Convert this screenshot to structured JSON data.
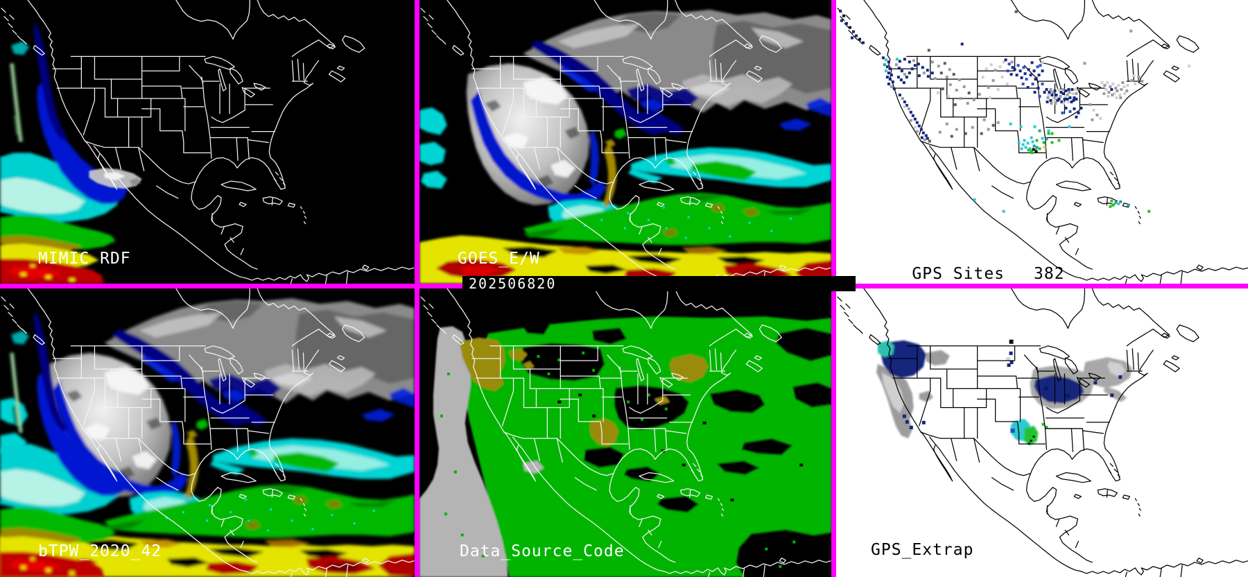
{
  "montage": {
    "timestamp": "202506820",
    "divider_color": "#ff00ff",
    "background": "#000000"
  },
  "panels": {
    "mimic_rdf": {
      "title": "MIMIC RDF",
      "text_color": "#ffffff"
    },
    "goes_ew": {
      "title": "GOES_E/W",
      "text_color": "#ffffff"
    },
    "gps_sites": {
      "title": "GPS Sites",
      "count": "382",
      "text_color": "#000000"
    },
    "btpw": {
      "title": "bTPW_2020_42",
      "text_color": "#ffffff"
    },
    "data_source_code": {
      "title": "Data_Source_Code",
      "text_color": "#ffffff"
    },
    "gps_extrap": {
      "title": "GPS_Extrap",
      "text_color": "#000000"
    }
  },
  "tpw_palette": {
    "dry_black": "#000000",
    "low_navy": "#000080",
    "low_blue": "#0018d0",
    "mid_cyan": "#00d4d4",
    "mid_pale_cyan": "#aef2e4",
    "moist_green": "#00b800",
    "high_yellow": "#e4e400",
    "very_high_red": "#b00000",
    "cloud_gray": "#c4c4c4",
    "source_green": "#00b400",
    "source_olive": "#9a8b10",
    "source_gray": "#b4b4b4"
  },
  "gps_dot_colors": {
    "n": "#14277e",
    "u": "#2d4fc8",
    "c": "#2fc9cf",
    "t": "#2a9f9f",
    "g": "#23c22e",
    "y": "#d4d432",
    "l": "#cfcfcf",
    "m": "#9a9a9a",
    "d": "#5a5a5a",
    "k": "#101010"
  },
  "gps_sites_dots": [
    [
      4,
      14,
      "n"
    ],
    [
      9,
      21,
      "k"
    ],
    [
      6,
      28,
      "n"
    ],
    [
      13,
      32,
      "n"
    ],
    [
      18,
      38,
      "k"
    ],
    [
      23,
      44,
      "n"
    ],
    [
      27,
      50,
      "n"
    ],
    [
      32,
      55,
      "k"
    ],
    [
      21,
      53,
      "n"
    ],
    [
      37,
      60,
      "n"
    ],
    [
      258,
      15,
      "d"
    ],
    [
      424,
      43,
      "m"
    ],
    [
      508,
      94,
      "l"
    ],
    [
      357,
      90,
      "m"
    ],
    [
      296,
      88,
      "l"
    ],
    [
      180,
      62,
      "n"
    ],
    [
      132,
      71,
      "d"
    ],
    [
      66,
      82,
      "n"
    ],
    [
      70,
      85,
      "c"
    ],
    [
      74,
      88,
      "n"
    ],
    [
      68,
      92,
      "t"
    ],
    [
      72,
      95,
      "n"
    ],
    [
      76,
      98,
      "n"
    ],
    [
      70,
      101,
      "c"
    ],
    [
      74,
      104,
      "n"
    ],
    [
      78,
      107,
      "n"
    ],
    [
      72,
      110,
      "n"
    ],
    [
      76,
      113,
      "n"
    ],
    [
      80,
      117,
      "n"
    ],
    [
      74,
      120,
      "n"
    ],
    [
      78,
      124,
      "m"
    ],
    [
      82,
      127,
      "n"
    ],
    [
      86,
      84,
      "c"
    ],
    [
      90,
      87,
      "n"
    ],
    [
      85,
      92,
      "m"
    ],
    [
      89,
      97,
      "n"
    ],
    [
      93,
      101,
      "n"
    ],
    [
      97,
      106,
      "m"
    ],
    [
      88,
      110,
      "n"
    ],
    [
      92,
      114,
      "n"
    ],
    [
      96,
      118,
      "n"
    ],
    [
      100,
      110,
      "n"
    ],
    [
      104,
      104,
      "n"
    ],
    [
      108,
      98,
      "n"
    ],
    [
      112,
      93,
      "n"
    ],
    [
      104,
      88,
      "n"
    ],
    [
      97,
      84,
      "n"
    ],
    [
      110,
      86,
      "m"
    ],
    [
      117,
      91,
      "n"
    ],
    [
      123,
      96,
      "n"
    ],
    [
      130,
      100,
      "n"
    ],
    [
      137,
      104,
      "n"
    ],
    [
      125,
      104,
      "m"
    ],
    [
      118,
      108,
      "n"
    ],
    [
      131,
      109,
      "n"
    ],
    [
      137,
      88,
      "m"
    ],
    [
      146,
      94,
      "m"
    ],
    [
      155,
      90,
      "d"
    ],
    [
      162,
      99,
      "m"
    ],
    [
      150,
      104,
      "d"
    ],
    [
      141,
      112,
      "m"
    ],
    [
      158,
      110,
      "m"
    ],
    [
      168,
      106,
      "d"
    ],
    [
      176,
      114,
      "m"
    ],
    [
      163,
      121,
      "m"
    ],
    [
      152,
      127,
      "d"
    ],
    [
      172,
      129,
      "m"
    ],
    [
      183,
      124,
      "m"
    ],
    [
      190,
      133,
      "d"
    ],
    [
      178,
      141,
      "m"
    ],
    [
      188,
      148,
      "m"
    ],
    [
      170,
      150,
      "d"
    ],
    [
      197,
      143,
      "m"
    ],
    [
      145,
      133,
      "l"
    ],
    [
      160,
      138,
      "l"
    ],
    [
      90,
      136,
      "n"
    ],
    [
      94,
      141,
      "m"
    ],
    [
      97,
      146,
      "n"
    ],
    [
      100,
      151,
      "n"
    ],
    [
      103,
      156,
      "m"
    ],
    [
      97,
      153,
      "l"
    ],
    [
      106,
      161,
      "n"
    ],
    [
      109,
      166,
      "n"
    ],
    [
      112,
      171,
      "n"
    ],
    [
      106,
      173,
      "m"
    ],
    [
      115,
      176,
      "n"
    ],
    [
      118,
      181,
      "n"
    ],
    [
      112,
      183,
      "l"
    ],
    [
      121,
      186,
      "n"
    ],
    [
      115,
      189,
      "m"
    ],
    [
      124,
      191,
      "n"
    ],
    [
      128,
      195,
      "n"
    ],
    [
      122,
      198,
      "n"
    ],
    [
      126,
      201,
      "m"
    ],
    [
      130,
      199,
      "n"
    ],
    [
      133,
      203,
      "d"
    ],
    [
      158,
      178,
      "m"
    ],
    [
      172,
      186,
      "m"
    ],
    [
      185,
      192,
      "d"
    ],
    [
      148,
      190,
      "m"
    ],
    [
      195,
      183,
      "m"
    ],
    [
      165,
      196,
      "d"
    ],
    [
      212,
      172,
      "m"
    ],
    [
      225,
      180,
      "d"
    ],
    [
      218,
      186,
      "m"
    ],
    [
      232,
      176,
      "m"
    ],
    [
      208,
      192,
      "d"
    ],
    [
      215,
      98,
      "l"
    ],
    [
      222,
      92,
      "l"
    ],
    [
      228,
      100,
      "m"
    ],
    [
      235,
      95,
      "l"
    ],
    [
      240,
      88,
      "l"
    ],
    [
      252,
      88,
      "m"
    ],
    [
      210,
      110,
      "l"
    ],
    [
      225,
      115,
      "m"
    ],
    [
      238,
      110,
      "l"
    ],
    [
      218,
      125,
      "m"
    ],
    [
      232,
      128,
      "l"
    ],
    [
      245,
      120,
      "l"
    ],
    [
      205,
      135,
      "m"
    ],
    [
      220,
      140,
      "l"
    ],
    [
      243,
      85,
      "n"
    ],
    [
      248,
      91,
      "u"
    ],
    [
      253,
      96,
      "n"
    ],
    [
      246,
      101,
      "u"
    ],
    [
      251,
      106,
      "n"
    ],
    [
      256,
      99,
      "n"
    ],
    [
      261,
      93,
      "u"
    ],
    [
      259,
      107,
      "n"
    ],
    [
      264,
      101,
      "n"
    ],
    [
      269,
      96,
      "u"
    ],
    [
      266,
      111,
      "n"
    ],
    [
      271,
      105,
      "n"
    ],
    [
      276,
      99,
      "n"
    ],
    [
      273,
      113,
      "u"
    ],
    [
      279,
      107,
      "n"
    ],
    [
      284,
      101,
      "n"
    ],
    [
      281,
      89,
      "n"
    ],
    [
      289,
      95,
      "u"
    ],
    [
      286,
      113,
      "n"
    ],
    [
      291,
      107,
      "n"
    ],
    [
      296,
      101,
      "n"
    ],
    [
      293,
      93,
      "u"
    ],
    [
      268,
      120,
      "u"
    ],
    [
      275,
      125,
      "n"
    ],
    [
      282,
      120,
      "u"
    ],
    [
      290,
      126,
      "n"
    ],
    [
      296,
      120,
      "u"
    ],
    [
      285,
      132,
      "n"
    ],
    [
      292,
      138,
      "u"
    ],
    [
      299,
      132,
      "n"
    ],
    [
      302,
      128,
      "n"
    ],
    [
      306,
      132,
      "n"
    ],
    [
      310,
      136,
      "n"
    ],
    [
      304,
      140,
      "m"
    ],
    [
      308,
      144,
      "n"
    ],
    [
      312,
      140,
      "l"
    ],
    [
      316,
      136,
      "n"
    ],
    [
      314,
      130,
      "n"
    ],
    [
      318,
      144,
      "n"
    ],
    [
      322,
      138,
      "m"
    ],
    [
      326,
      134,
      "n"
    ],
    [
      320,
      128,
      "l"
    ],
    [
      324,
      146,
      "n"
    ],
    [
      328,
      142,
      "n"
    ],
    [
      332,
      136,
      "m"
    ],
    [
      330,
      130,
      "n"
    ],
    [
      336,
      140,
      "n"
    ],
    [
      340,
      134,
      "l"
    ],
    [
      334,
      128,
      "n"
    ],
    [
      338,
      146,
      "n"
    ],
    [
      342,
      140,
      "n"
    ],
    [
      345,
      134,
      "m"
    ],
    [
      305,
      136,
      "l"
    ],
    [
      311,
      132,
      "m"
    ],
    [
      317,
      140,
      "l"
    ],
    [
      323,
      132,
      "n"
    ],
    [
      329,
      138,
      "l"
    ],
    [
      335,
      132,
      "m"
    ],
    [
      341,
      144,
      "n"
    ],
    [
      315,
      148,
      "m"
    ],
    [
      327,
      148,
      "l"
    ],
    [
      303,
      146,
      "n"
    ],
    [
      309,
      148,
      "m"
    ],
    [
      333,
      146,
      "l"
    ],
    [
      339,
      128,
      "n"
    ],
    [
      345,
      142,
      "n"
    ],
    [
      308,
      128,
      "m"
    ],
    [
      320,
      142,
      "n"
    ],
    [
      314,
      144,
      "l"
    ],
    [
      326,
      128,
      "m"
    ],
    [
      332,
      142,
      "n"
    ],
    [
      344,
      128,
      "l"
    ],
    [
      330,
      155,
      "n"
    ],
    [
      336,
      160,
      "u"
    ],
    [
      342,
      156,
      "n"
    ],
    [
      348,
      162,
      "n"
    ],
    [
      325,
      162,
      "u"
    ],
    [
      352,
      155,
      "n"
    ],
    [
      345,
      168,
      "n"
    ],
    [
      382,
      118,
      "l"
    ],
    [
      386,
      122,
      "m"
    ],
    [
      390,
      118,
      "l"
    ],
    [
      394,
      124,
      "m"
    ],
    [
      398,
      120,
      "l"
    ],
    [
      402,
      126,
      "m"
    ],
    [
      406,
      122,
      "l"
    ],
    [
      410,
      128,
      "m"
    ],
    [
      414,
      124,
      "l"
    ],
    [
      418,
      130,
      "m"
    ],
    [
      388,
      128,
      "l"
    ],
    [
      392,
      132,
      "m"
    ],
    [
      396,
      128,
      "n"
    ],
    [
      400,
      134,
      "l"
    ],
    [
      404,
      130,
      "m"
    ],
    [
      408,
      136,
      "l"
    ],
    [
      385,
      134,
      "m"
    ],
    [
      391,
      138,
      "l"
    ],
    [
      397,
      136,
      "m"
    ],
    [
      403,
      140,
      "l"
    ],
    [
      409,
      140,
      "m"
    ],
    [
      415,
      134,
      "l"
    ],
    [
      412,
      118,
      "m"
    ],
    [
      419,
      122,
      "l"
    ],
    [
      425,
      115,
      "m"
    ],
    [
      430,
      120,
      "l"
    ],
    [
      435,
      110,
      "m"
    ],
    [
      428,
      108,
      "l"
    ],
    [
      440,
      116,
      "m"
    ],
    [
      365,
      150,
      "m"
    ],
    [
      370,
      158,
      "l"
    ],
    [
      375,
      165,
      "m"
    ],
    [
      368,
      172,
      "m"
    ],
    [
      380,
      170,
      "l"
    ],
    [
      265,
      182,
      "c"
    ],
    [
      285,
      182,
      "c"
    ],
    [
      305,
      188,
      "c"
    ],
    [
      335,
      182,
      "c"
    ],
    [
      250,
      178,
      "c"
    ],
    [
      270,
      202,
      "c"
    ],
    [
      280,
      198,
      "c"
    ],
    [
      268,
      208,
      "c"
    ],
    [
      262,
      205,
      "c"
    ],
    [
      275,
      206,
      "c"
    ],
    [
      282,
      204,
      "c"
    ],
    [
      272,
      212,
      "c"
    ],
    [
      266,
      214,
      "c"
    ],
    [
      278,
      214,
      "c"
    ],
    [
      284,
      210,
      "t"
    ],
    [
      288,
      212,
      "t"
    ],
    [
      292,
      188,
      "t"
    ],
    [
      305,
      192,
      "g"
    ],
    [
      310,
      192,
      "g"
    ],
    [
      288,
      202,
      "g"
    ],
    [
      298,
      205,
      "g"
    ],
    [
      276,
      216,
      "g"
    ],
    [
      280,
      218,
      "g"
    ],
    [
      286,
      216,
      "g"
    ],
    [
      292,
      214,
      "g"
    ],
    [
      310,
      205,
      "g"
    ],
    [
      320,
      202,
      "g"
    ],
    [
      299,
      212,
      "y"
    ],
    [
      283,
      215,
      "k"
    ],
    [
      287,
      218,
      "k"
    ],
    [
      281,
      220,
      "g"
    ],
    [
      296,
      199,
      "c"
    ],
    [
      302,
      200,
      "t"
    ],
    [
      198,
      288,
      "c"
    ],
    [
      240,
      305,
      "c"
    ],
    [
      396,
      290,
      "g"
    ],
    [
      402,
      292,
      "t"
    ],
    [
      398,
      296,
      "g"
    ],
    [
      406,
      294,
      "c"
    ],
    [
      394,
      298,
      "g"
    ],
    [
      409,
      291,
      "t"
    ],
    [
      420,
      296,
      "t"
    ],
    [
      450,
      305,
      "g"
    ]
  ]
}
